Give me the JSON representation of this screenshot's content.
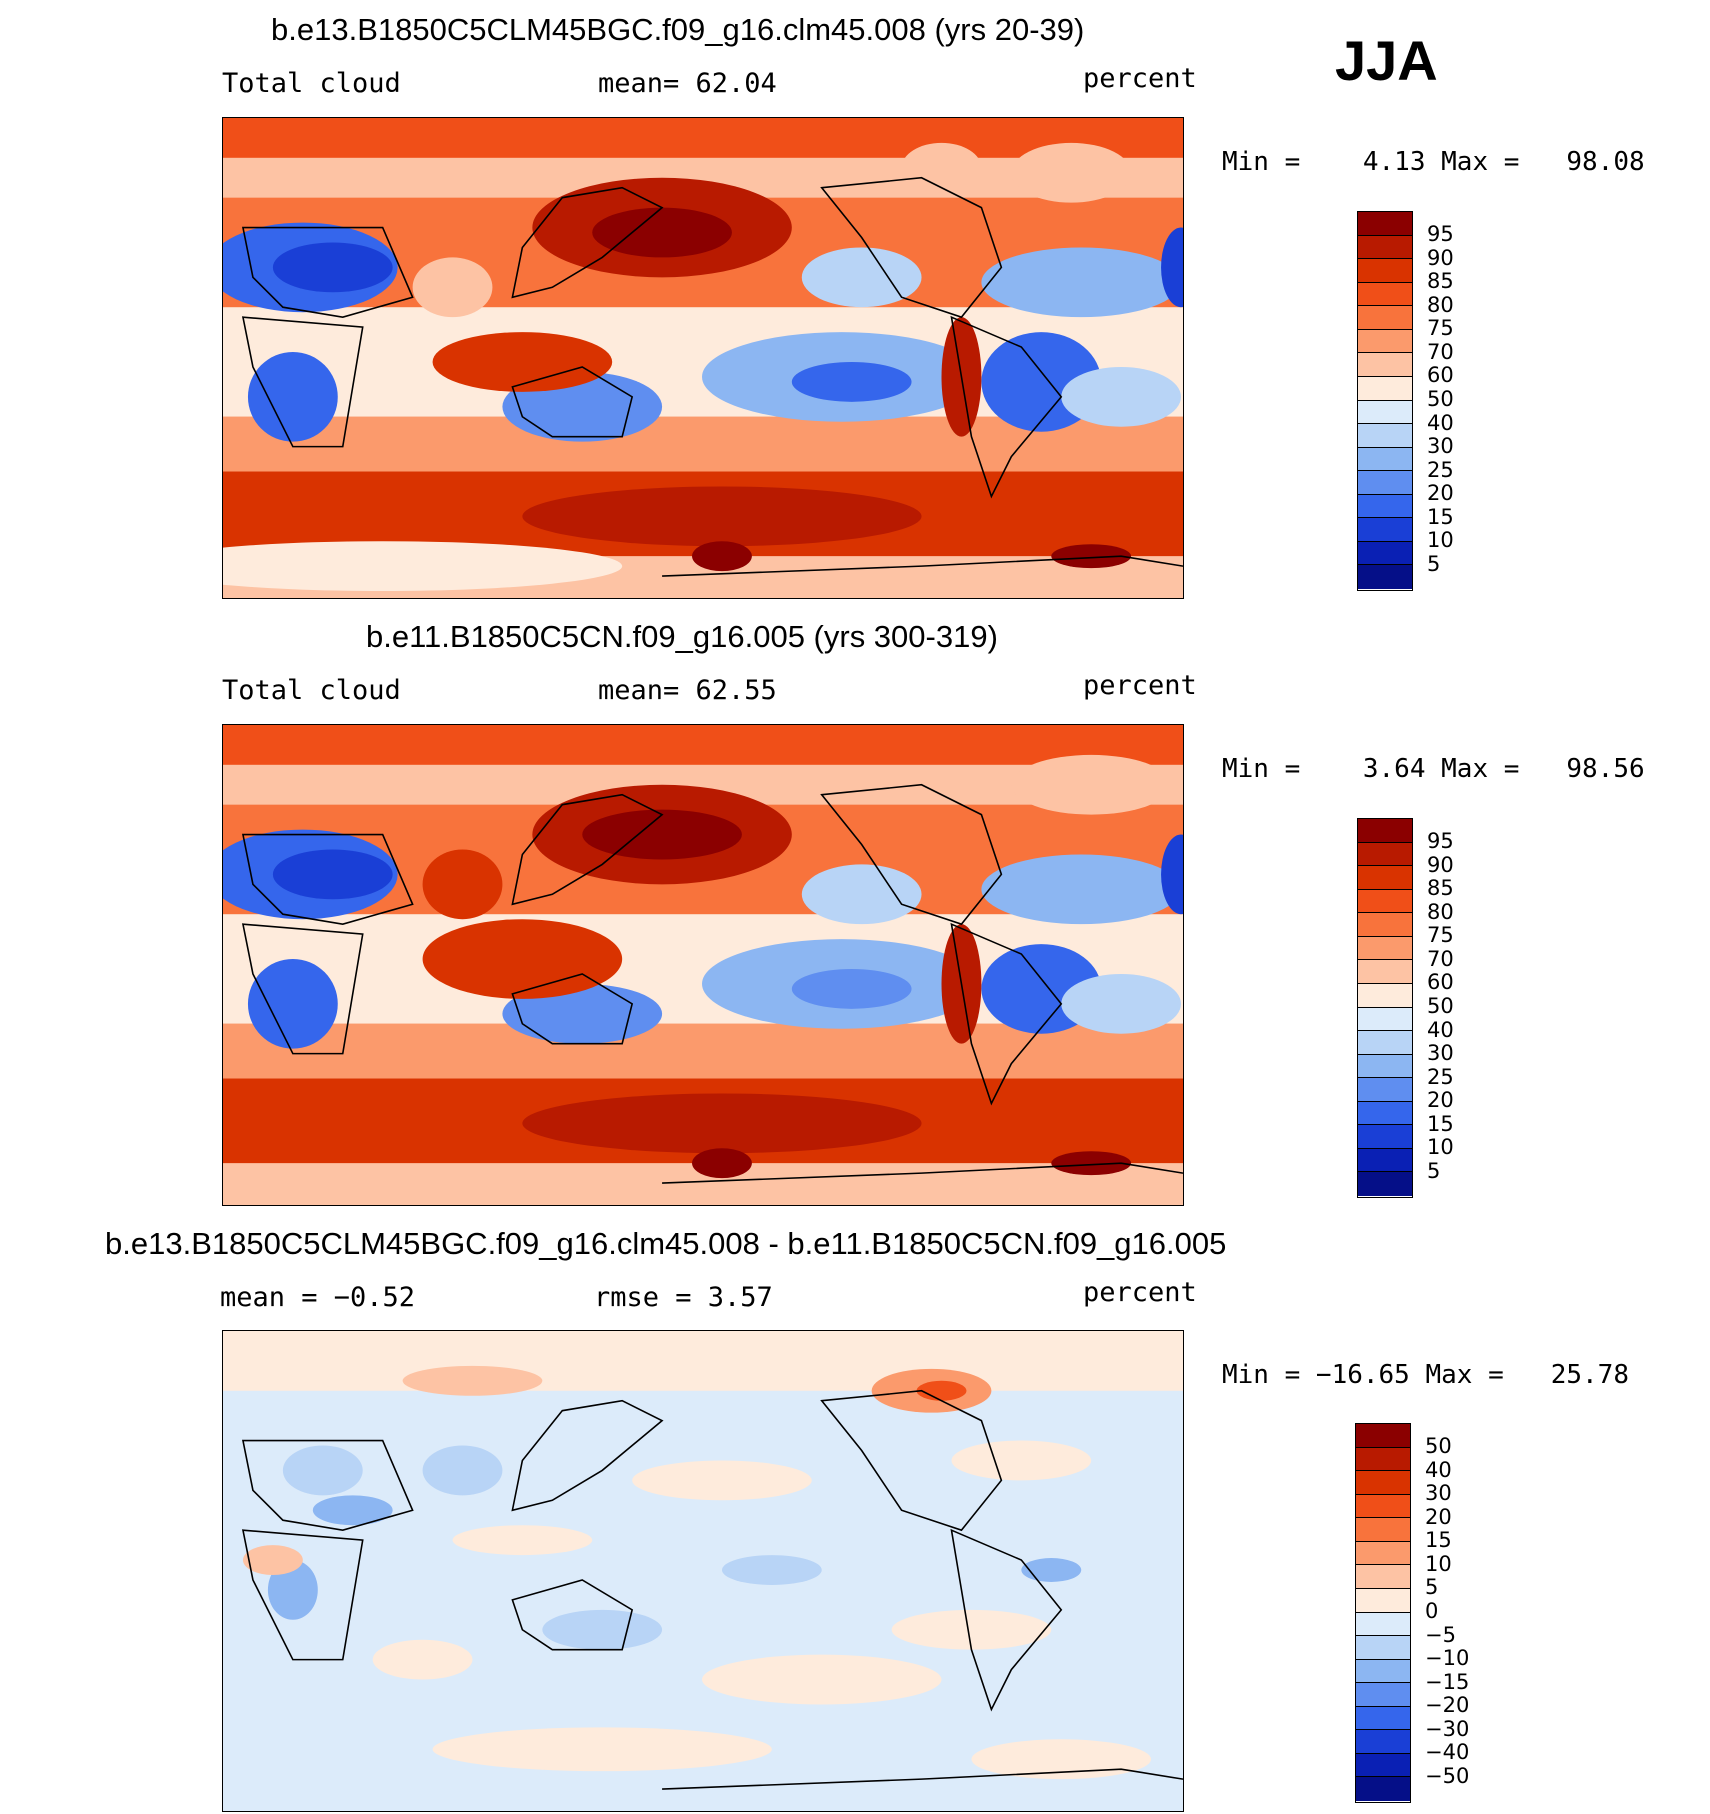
{
  "season": "JJA",
  "panels": [
    {
      "title": "b.e13.B1850C5CLM45BGC.f09_g16.clm45.008 (yrs 20-39)",
      "left_label": "Total cloud",
      "middle_label": "mean=   62.04",
      "units": "percent",
      "minmax": "Min =    4.13 Max =   98.08",
      "legend_labels": [
        "95",
        "90",
        "85",
        "80",
        "75",
        "70",
        "60",
        "50",
        "40",
        "30",
        "25",
        "20",
        "15",
        "10",
        "5"
      ]
    },
    {
      "title": "b.e11.B1850C5CN.f09_g16.005 (yrs 300-319)",
      "left_label": "Total cloud",
      "middle_label": "mean=   62.55",
      "units": "percent",
      "minmax": "Min =    3.64 Max =   98.56",
      "legend_labels": [
        "95",
        "90",
        "85",
        "80",
        "75",
        "70",
        "60",
        "50",
        "40",
        "30",
        "25",
        "20",
        "15",
        "10",
        "5"
      ]
    },
    {
      "title": "b.e13.B1850C5CLM45BGC.f09_g16.clm45.008 - b.e11.B1850C5CN.f09_g16.005",
      "left_label": "mean =   −0.52",
      "middle_label": "rmse =    3.57",
      "units": "percent",
      "minmax": "Min = −16.65 Max =   25.78",
      "legend_labels": [
        "50",
        "40",
        "30",
        "20",
        "15",
        "10",
        "5",
        "0",
        "−5",
        "−10",
        "−15",
        "−20",
        "−30",
        "−40",
        "−50"
      ]
    }
  ],
  "colors": {
    "abs_scale": [
      "#8b0000",
      "#b81a00",
      "#d93300",
      "#f04f18",
      "#f8733c",
      "#fb9a6c",
      "#fdc3a4",
      "#feebdc",
      "#dcebfa",
      "#b8d4f6",
      "#8cb6f2",
      "#5f8ef0",
      "#3566ec",
      "#1a3fd6",
      "#0a20b4",
      "#050f88"
    ],
    "diff_scale": [
      "#8b0000",
      "#b81a00",
      "#d93300",
      "#f04f18",
      "#f8733c",
      "#fb9a6c",
      "#fdc3a4",
      "#feebdc",
      "#dcebfa",
      "#b8d4f6",
      "#8cb6f2",
      "#5f8ef0",
      "#3566ec",
      "#1a3fd6",
      "#0a20b4",
      "#050f88"
    ]
  }
}
